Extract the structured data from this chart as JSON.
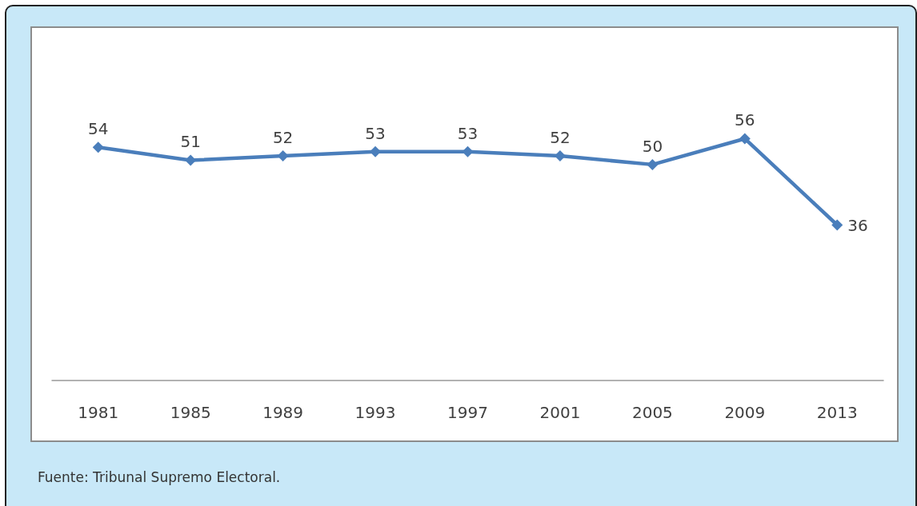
{
  "chart_data": {
    "type": "line",
    "categories": [
      "1981",
      "1985",
      "1989",
      "1993",
      "1997",
      "2001",
      "2005",
      "2009",
      "2013"
    ],
    "values": [
      54,
      51,
      52,
      53,
      53,
      52,
      50,
      56,
      36
    ],
    "color": "#4a7ebb",
    "ylim": [
      0,
      82
    ],
    "data_labels": true,
    "marker": "diamond",
    "line_style": "solid",
    "tick_labels": "x",
    "annotations": [
      "Fuente: Tribunal Supremo Electoral."
    ]
  }
}
